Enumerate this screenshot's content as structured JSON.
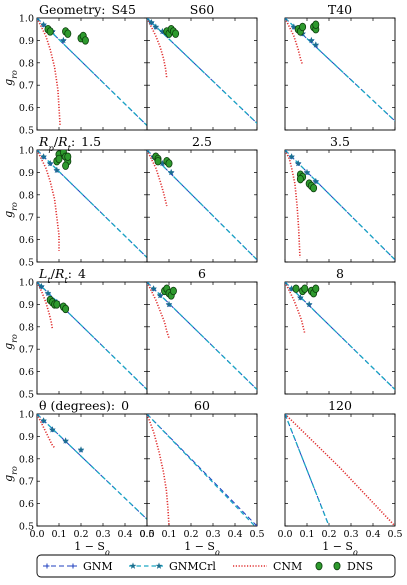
{
  "colors": {
    "gnm": "#1f3fbf",
    "gnmcrl": "#1aa6c4",
    "gnmcrl_marker": "#1a6e8e",
    "cnm": "#e03030",
    "dns_fill": "#2e9a2e",
    "dns_edge": "#0c3d0c"
  },
  "shared_axes": {
    "xlabel": "1 − S",
    "xlabel_sub": "o",
    "ylabel": "g",
    "ylabel_sub": "ro",
    "xlim": [
      0.0,
      0.5
    ],
    "ylim": [
      0.5,
      1.0
    ],
    "xticks": [
      "0.0",
      "0.1",
      "0.2",
      "0.3",
      "0.4",
      "0.5"
    ],
    "yticks": [
      "0.5",
      "0.6",
      "0.7",
      "0.8",
      "0.9",
      "1.0"
    ]
  },
  "row_labels": [
    {
      "text": "Geometry:"
    },
    {
      "text": "R/R:",
      "math": true
    },
    {
      "text": "L/R:",
      "math": true
    },
    {
      "text": "θ (degrees):"
    }
  ],
  "legend": {
    "entries": [
      {
        "label": "GNM",
        "key": "gnm"
      },
      {
        "label": "GNMCrl",
        "key": "gnmcrl"
      },
      {
        "label": "CNM",
        "key": "cnm"
      },
      {
        "label": "DNS",
        "key": "dns"
      }
    ]
  },
  "chart_data": [
    {
      "type": "line",
      "title": "S45",
      "series": [
        {
          "name": "GNM",
          "x": [
            0.0,
            0.5
          ],
          "y": [
            1.0,
            0.52
          ]
        },
        {
          "name": "GNMCrl",
          "x": [
            0.0,
            0.5
          ],
          "y": [
            1.0,
            0.52
          ],
          "markers": [
            [
              0.0,
              1.0
            ],
            [
              0.03,
              0.97
            ],
            [
              0.07,
              0.94
            ],
            [
              0.12,
              0.9
            ]
          ]
        },
        {
          "name": "CNM",
          "x": [
            0.0,
            0.02,
            0.04,
            0.06,
            0.08,
            0.095,
            0.1,
            0.105
          ],
          "y": [
            1.0,
            0.96,
            0.92,
            0.86,
            0.78,
            0.68,
            0.6,
            0.52
          ]
        },
        {
          "name": "DNS",
          "x": [
            0.05,
            0.06,
            0.13,
            0.14,
            0.2,
            0.21,
            0.22
          ],
          "y": [
            0.95,
            0.94,
            0.94,
            0.93,
            0.91,
            0.92,
            0.9
          ]
        }
      ]
    },
    {
      "type": "line",
      "title": "S60",
      "series": [
        {
          "name": "GNM",
          "x": [
            0.0,
            0.5
          ],
          "y": [
            1.0,
            0.53
          ]
        },
        {
          "name": "GNMCrl",
          "x": [
            0.0,
            0.5
          ],
          "y": [
            1.0,
            0.53
          ],
          "markers": [
            [
              0.0,
              1.0
            ],
            [
              0.02,
              0.98
            ],
            [
              0.04,
              0.96
            ],
            [
              0.07,
              0.94
            ]
          ]
        },
        {
          "name": "CNM",
          "x": [
            0.0,
            0.02,
            0.04,
            0.06,
            0.075,
            0.085,
            0.09
          ],
          "y": [
            1.0,
            0.96,
            0.92,
            0.87,
            0.82,
            0.77,
            0.73
          ]
        },
        {
          "name": "DNS",
          "x": [
            0.09,
            0.1,
            0.11,
            0.12,
            0.13
          ],
          "y": [
            0.94,
            0.93,
            0.95,
            0.94,
            0.93
          ]
        }
      ]
    },
    {
      "type": "line",
      "title": "T40",
      "series": [
        {
          "name": "GNM",
          "x": [
            0.0,
            0.5
          ],
          "y": [
            1.0,
            0.54
          ]
        },
        {
          "name": "GNMCrl",
          "x": [
            0.0,
            0.5
          ],
          "y": [
            1.0,
            0.54
          ],
          "markers": [
            [
              0.0,
              1.0
            ],
            [
              0.04,
              0.96
            ],
            [
              0.08,
              0.93
            ],
            [
              0.12,
              0.9
            ],
            [
              0.14,
              0.88
            ]
          ]
        },
        {
          "name": "CNM",
          "x": [
            0.0,
            0.02,
            0.04,
            0.06,
            0.07,
            0.08
          ],
          "y": [
            1.0,
            0.96,
            0.92,
            0.86,
            0.82,
            0.79
          ]
        },
        {
          "name": "DNS",
          "x": [
            0.06,
            0.07,
            0.08,
            0.13,
            0.14,
            0.14
          ],
          "y": [
            0.95,
            0.94,
            0.96,
            0.96,
            0.95,
            0.97
          ]
        }
      ]
    },
    {
      "type": "line",
      "title": "1.5",
      "series": [
        {
          "name": "GNM",
          "x": [
            0.0,
            0.5
          ],
          "y": [
            1.0,
            0.52
          ]
        },
        {
          "name": "GNMCrl",
          "x": [
            0.0,
            0.5
          ],
          "y": [
            1.0,
            0.52
          ],
          "markers": [
            [
              0.0,
              1.0
            ],
            [
              0.03,
              0.97
            ],
            [
              0.06,
              0.94
            ],
            [
              0.09,
              0.91
            ]
          ]
        },
        {
          "name": "CNM",
          "x": [
            0.0,
            0.02,
            0.04,
            0.06,
            0.08,
            0.09,
            0.1,
            0.1
          ],
          "y": [
            1.0,
            0.96,
            0.92,
            0.86,
            0.78,
            0.7,
            0.62,
            0.55
          ]
        },
        {
          "name": "DNS",
          "x": [
            0.09,
            0.1,
            0.1,
            0.12,
            0.13,
            0.14,
            0.13,
            0.14
          ],
          "y": [
            0.95,
            0.98,
            0.96,
            0.99,
            0.97,
            0.95,
            0.93,
            0.97
          ]
        }
      ]
    },
    {
      "type": "line",
      "title": "2.5",
      "series": [
        {
          "name": "GNM",
          "x": [
            0.0,
            0.5
          ],
          "y": [
            1.0,
            0.51
          ]
        },
        {
          "name": "GNMCrl",
          "x": [
            0.0,
            0.5
          ],
          "y": [
            1.0,
            0.51
          ],
          "markers": [
            [
              0.0,
              1.0
            ],
            [
              0.03,
              0.97
            ],
            [
              0.07,
              0.94
            ],
            [
              0.11,
              0.9
            ]
          ]
        },
        {
          "name": "CNM",
          "x": [
            0.0,
            0.02,
            0.04,
            0.06,
            0.075,
            0.085,
            0.09
          ],
          "y": [
            1.0,
            0.96,
            0.92,
            0.86,
            0.81,
            0.77,
            0.75
          ]
        },
        {
          "name": "DNS",
          "x": [
            0.04,
            0.05,
            0.05,
            0.09,
            0.1
          ],
          "y": [
            0.97,
            0.96,
            0.95,
            0.95,
            0.94
          ]
        }
      ]
    },
    {
      "type": "line",
      "title": "3.5",
      "series": [
        {
          "name": "GNM",
          "x": [
            0.0,
            0.5
          ],
          "y": [
            1.0,
            0.51
          ]
        },
        {
          "name": "GNMCrl",
          "x": [
            0.0,
            0.5
          ],
          "y": [
            1.0,
            0.51
          ],
          "markers": [
            [
              0.0,
              1.0
            ],
            [
              0.03,
              0.97
            ],
            [
              0.06,
              0.94
            ],
            [
              0.1,
              0.9
            ],
            [
              0.14,
              0.86
            ]
          ]
        },
        {
          "name": "CNM",
          "x": [
            0.0,
            0.02,
            0.03,
            0.045,
            0.055,
            0.062,
            0.068
          ],
          "y": [
            1.0,
            0.96,
            0.92,
            0.85,
            0.75,
            0.65,
            0.52
          ]
        },
        {
          "name": "DNS",
          "x": [
            0.07,
            0.08,
            0.07,
            0.11,
            0.12,
            0.13
          ],
          "y": [
            0.89,
            0.88,
            0.87,
            0.85,
            0.84,
            0.83
          ]
        }
      ]
    },
    {
      "type": "line",
      "title": "4",
      "series": [
        {
          "name": "GNM",
          "x": [
            0.0,
            0.5
          ],
          "y": [
            1.0,
            0.52
          ]
        },
        {
          "name": "GNMCrl",
          "x": [
            0.0,
            0.5
          ],
          "y": [
            1.0,
            0.52
          ],
          "markers": [
            [
              0.0,
              1.0
            ],
            [
              0.02,
              0.98
            ],
            [
              0.05,
              0.95
            ],
            [
              0.09,
              0.91
            ]
          ]
        },
        {
          "name": "CNM",
          "x": [
            0.0,
            0.02,
            0.04,
            0.055,
            0.065,
            0.07
          ],
          "y": [
            1.0,
            0.96,
            0.91,
            0.86,
            0.82,
            0.79
          ]
        },
        {
          "name": "DNS",
          "x": [
            0.06,
            0.07,
            0.08,
            0.09,
            0.12,
            0.13
          ],
          "y": [
            0.92,
            0.91,
            0.9,
            0.9,
            0.89,
            0.88
          ]
        }
      ]
    },
    {
      "type": "line",
      "title": "6",
      "series": [
        {
          "name": "GNM",
          "x": [
            0.0,
            0.5
          ],
          "y": [
            1.0,
            0.52
          ]
        },
        {
          "name": "GNMCrl",
          "x": [
            0.0,
            0.5
          ],
          "y": [
            1.0,
            0.52
          ],
          "markers": [
            [
              0.0,
              1.0
            ],
            [
              0.03,
              0.97
            ],
            [
              0.06,
              0.94
            ],
            [
              0.1,
              0.9
            ]
          ]
        },
        {
          "name": "CNM",
          "x": [
            0.0,
            0.02,
            0.04,
            0.06,
            0.08,
            0.09,
            0.1
          ],
          "y": [
            1.0,
            0.96,
            0.92,
            0.87,
            0.82,
            0.78,
            0.75
          ]
        },
        {
          "name": "DNS",
          "x": [
            0.08,
            0.09,
            0.1,
            0.11,
            0.12
          ],
          "y": [
            0.96,
            0.97,
            0.95,
            0.94,
            0.96
          ]
        }
      ]
    },
    {
      "type": "line",
      "title": "8",
      "series": [
        {
          "name": "GNM",
          "x": [
            0.0,
            0.5
          ],
          "y": [
            1.0,
            0.52
          ]
        },
        {
          "name": "GNMCrl",
          "x": [
            0.0,
            0.5
          ],
          "y": [
            1.0,
            0.52
          ],
          "markers": [
            [
              0.0,
              1.0
            ],
            [
              0.03,
              0.97
            ],
            [
              0.07,
              0.93
            ],
            [
              0.11,
              0.9
            ]
          ]
        },
        {
          "name": "CNM",
          "x": [
            0.0,
            0.02,
            0.04,
            0.06,
            0.075,
            0.085,
            0.09
          ],
          "y": [
            1.0,
            0.96,
            0.92,
            0.87,
            0.83,
            0.79,
            0.77
          ]
        },
        {
          "name": "DNS",
          "x": [
            0.05,
            0.08,
            0.09,
            0.12,
            0.13,
            0.14
          ],
          "y": [
            0.97,
            0.96,
            0.97,
            0.96,
            0.95,
            0.97
          ]
        }
      ]
    },
    {
      "type": "line",
      "title": "0",
      "series": [
        {
          "name": "GNM",
          "x": [
            0.0,
            0.5
          ],
          "y": [
            1.0,
            0.53
          ]
        },
        {
          "name": "GNMCrl",
          "x": [
            0.0,
            0.5
          ],
          "y": [
            1.0,
            0.53
          ],
          "markers": [
            [
              0.0,
              1.0
            ],
            [
              0.03,
              0.97
            ],
            [
              0.07,
              0.93
            ],
            [
              0.13,
              0.88
            ],
            [
              0.2,
              0.84
            ]
          ]
        },
        {
          "name": "CNM",
          "x": [
            0.0,
            0.02,
            0.04,
            0.06,
            0.07,
            0.08
          ],
          "y": [
            1.0,
            0.96,
            0.92,
            0.88,
            0.86,
            0.85
          ]
        },
        {
          "name": "DNS",
          "x": [],
          "y": []
        }
      ]
    },
    {
      "type": "line",
      "title": "60",
      "series": [
        {
          "name": "GNM",
          "x": [
            0.0,
            0.5
          ],
          "y": [
            1.0,
            0.5
          ]
        },
        {
          "name": "GNMCrl",
          "x": [
            0.0,
            0.49
          ],
          "y": [
            1.0,
            0.5
          ],
          "markers": [
            [
              0.0,
              1.0
            ]
          ]
        },
        {
          "name": "CNM",
          "x": [
            0.0,
            0.03,
            0.055,
            0.075,
            0.088,
            0.095,
            0.1
          ],
          "y": [
            1.0,
            0.92,
            0.83,
            0.74,
            0.66,
            0.58,
            0.5
          ]
        },
        {
          "name": "DNS",
          "x": [],
          "y": []
        }
      ]
    },
    {
      "type": "line",
      "title": "120",
      "series": [
        {
          "name": "GNM",
          "x": [
            0.0,
            0.2
          ],
          "y": [
            1.0,
            0.5
          ]
        },
        {
          "name": "GNMCrl",
          "x": [
            0.0,
            0.2
          ],
          "y": [
            1.0,
            0.5
          ],
          "markers": [
            [
              0.0,
              1.0
            ]
          ]
        },
        {
          "name": "CNM",
          "x": [
            0.0,
            0.25,
            0.5
          ],
          "y": [
            1.0,
            0.76,
            0.5
          ]
        },
        {
          "name": "DNS",
          "x": [],
          "y": []
        }
      ]
    }
  ]
}
